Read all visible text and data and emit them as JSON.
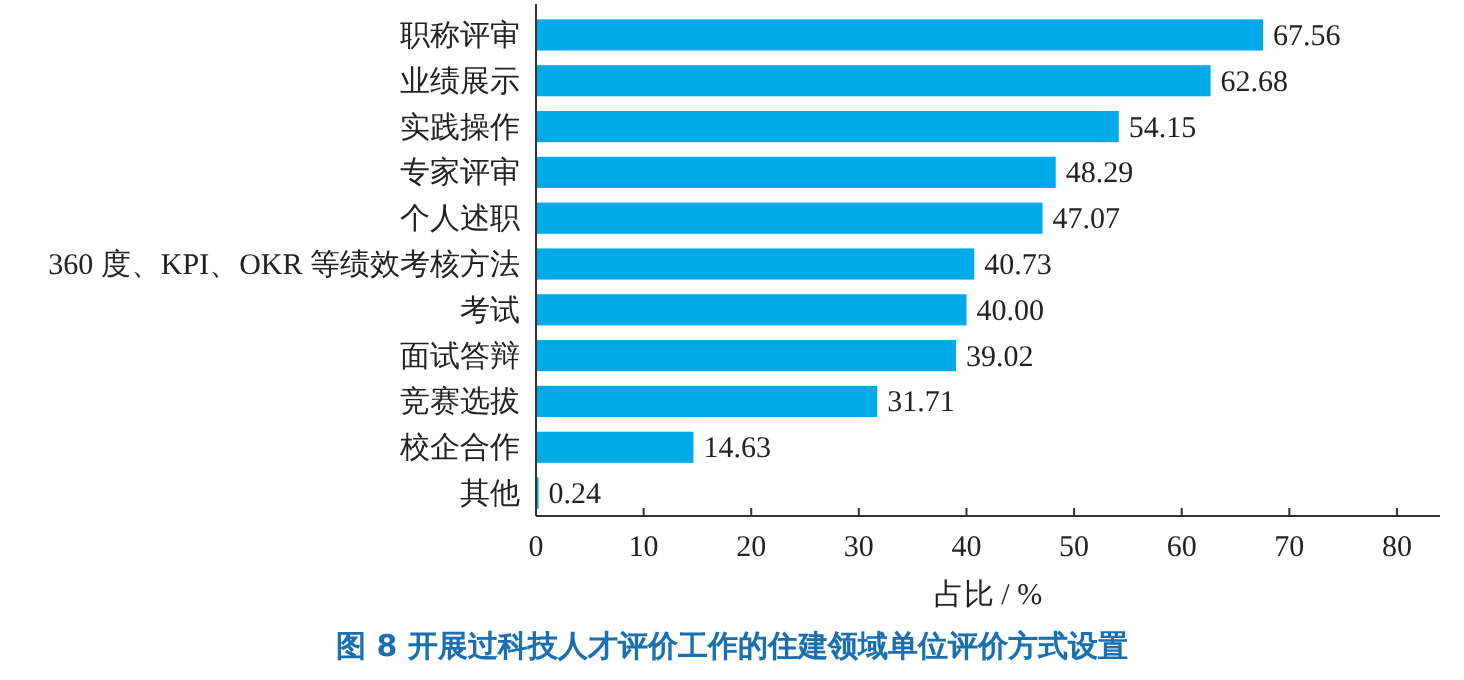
{
  "chart_data": {
    "type": "bar",
    "orientation": "horizontal",
    "title": "图 8  开展过科技人才评价工作的住建领域单位评价方式设置",
    "xlabel": "占比 / %",
    "categories": [
      "职称评审",
      "业绩展示",
      "实践操作",
      "专家评审",
      "个人述职",
      "360 度、KPI、OKR 等绩效考核方法",
      "考试",
      "面试答辩",
      "竞赛选拔",
      "校企合作",
      "其他"
    ],
    "values": [
      67.56,
      62.68,
      54.15,
      48.29,
      47.07,
      40.73,
      40.0,
      39.02,
      31.71,
      14.63,
      0.24
    ],
    "value_labels": [
      "67.56",
      "62.68",
      "54.15",
      "48.29",
      "47.07",
      "40.73",
      "40.00",
      "39.02",
      "31.71",
      "14.63",
      "0.24"
    ],
    "color": "#00a9e8",
    "xlim": [
      0,
      84
    ],
    "xticks": [
      0,
      10,
      20,
      30,
      40,
      50,
      60,
      70,
      80
    ]
  }
}
